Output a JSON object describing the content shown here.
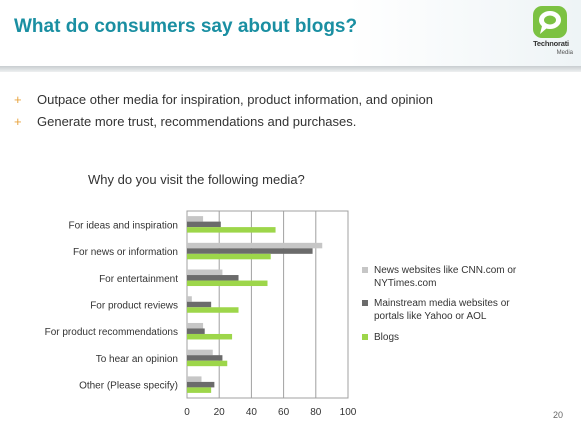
{
  "header": {
    "title": "What do consumers say about blogs?",
    "logo_name": "Technorati",
    "logo_sub": "Media"
  },
  "bullets": [
    "Outpace other media for inspiration, product information, and opinion",
    "Generate more trust, recommendations and purchases."
  ],
  "bullet_marker": "+",
  "page_number": "20",
  "colors": {
    "news": "#c6c6c6",
    "mainstream": "#6b6b6b",
    "blogs": "#9dd64a",
    "title": "#1a8fa2",
    "bullet": "#e8a33d"
  },
  "chart_data": {
    "type": "bar",
    "orientation": "horizontal",
    "title": "Why do you visit the following media?",
    "categories": [
      "For ideas and inspiration",
      "For news or information",
      "For entertainment",
      "For product reviews",
      "For product recommendations",
      "To hear an opinion",
      "Other (Please specify)"
    ],
    "series": [
      {
        "name": "News websites like CNN.com or NYTimes.com",
        "color": "#c6c6c6",
        "values": [
          10,
          84,
          22,
          3,
          10,
          16,
          9
        ]
      },
      {
        "name": "Mainstream media websites or portals like Yahoo or AOL",
        "color": "#6b6b6b",
        "values": [
          21,
          78,
          32,
          15,
          11,
          22,
          17
        ]
      },
      {
        "name": "Blogs",
        "color": "#9dd64a",
        "values": [
          55,
          52,
          50,
          32,
          28,
          25,
          15
        ]
      }
    ],
    "xlim": [
      0,
      100
    ],
    "xticks": [
      "0",
      "20",
      "40",
      "60",
      "80",
      "100"
    ],
    "grid": true,
    "legend": "right"
  }
}
